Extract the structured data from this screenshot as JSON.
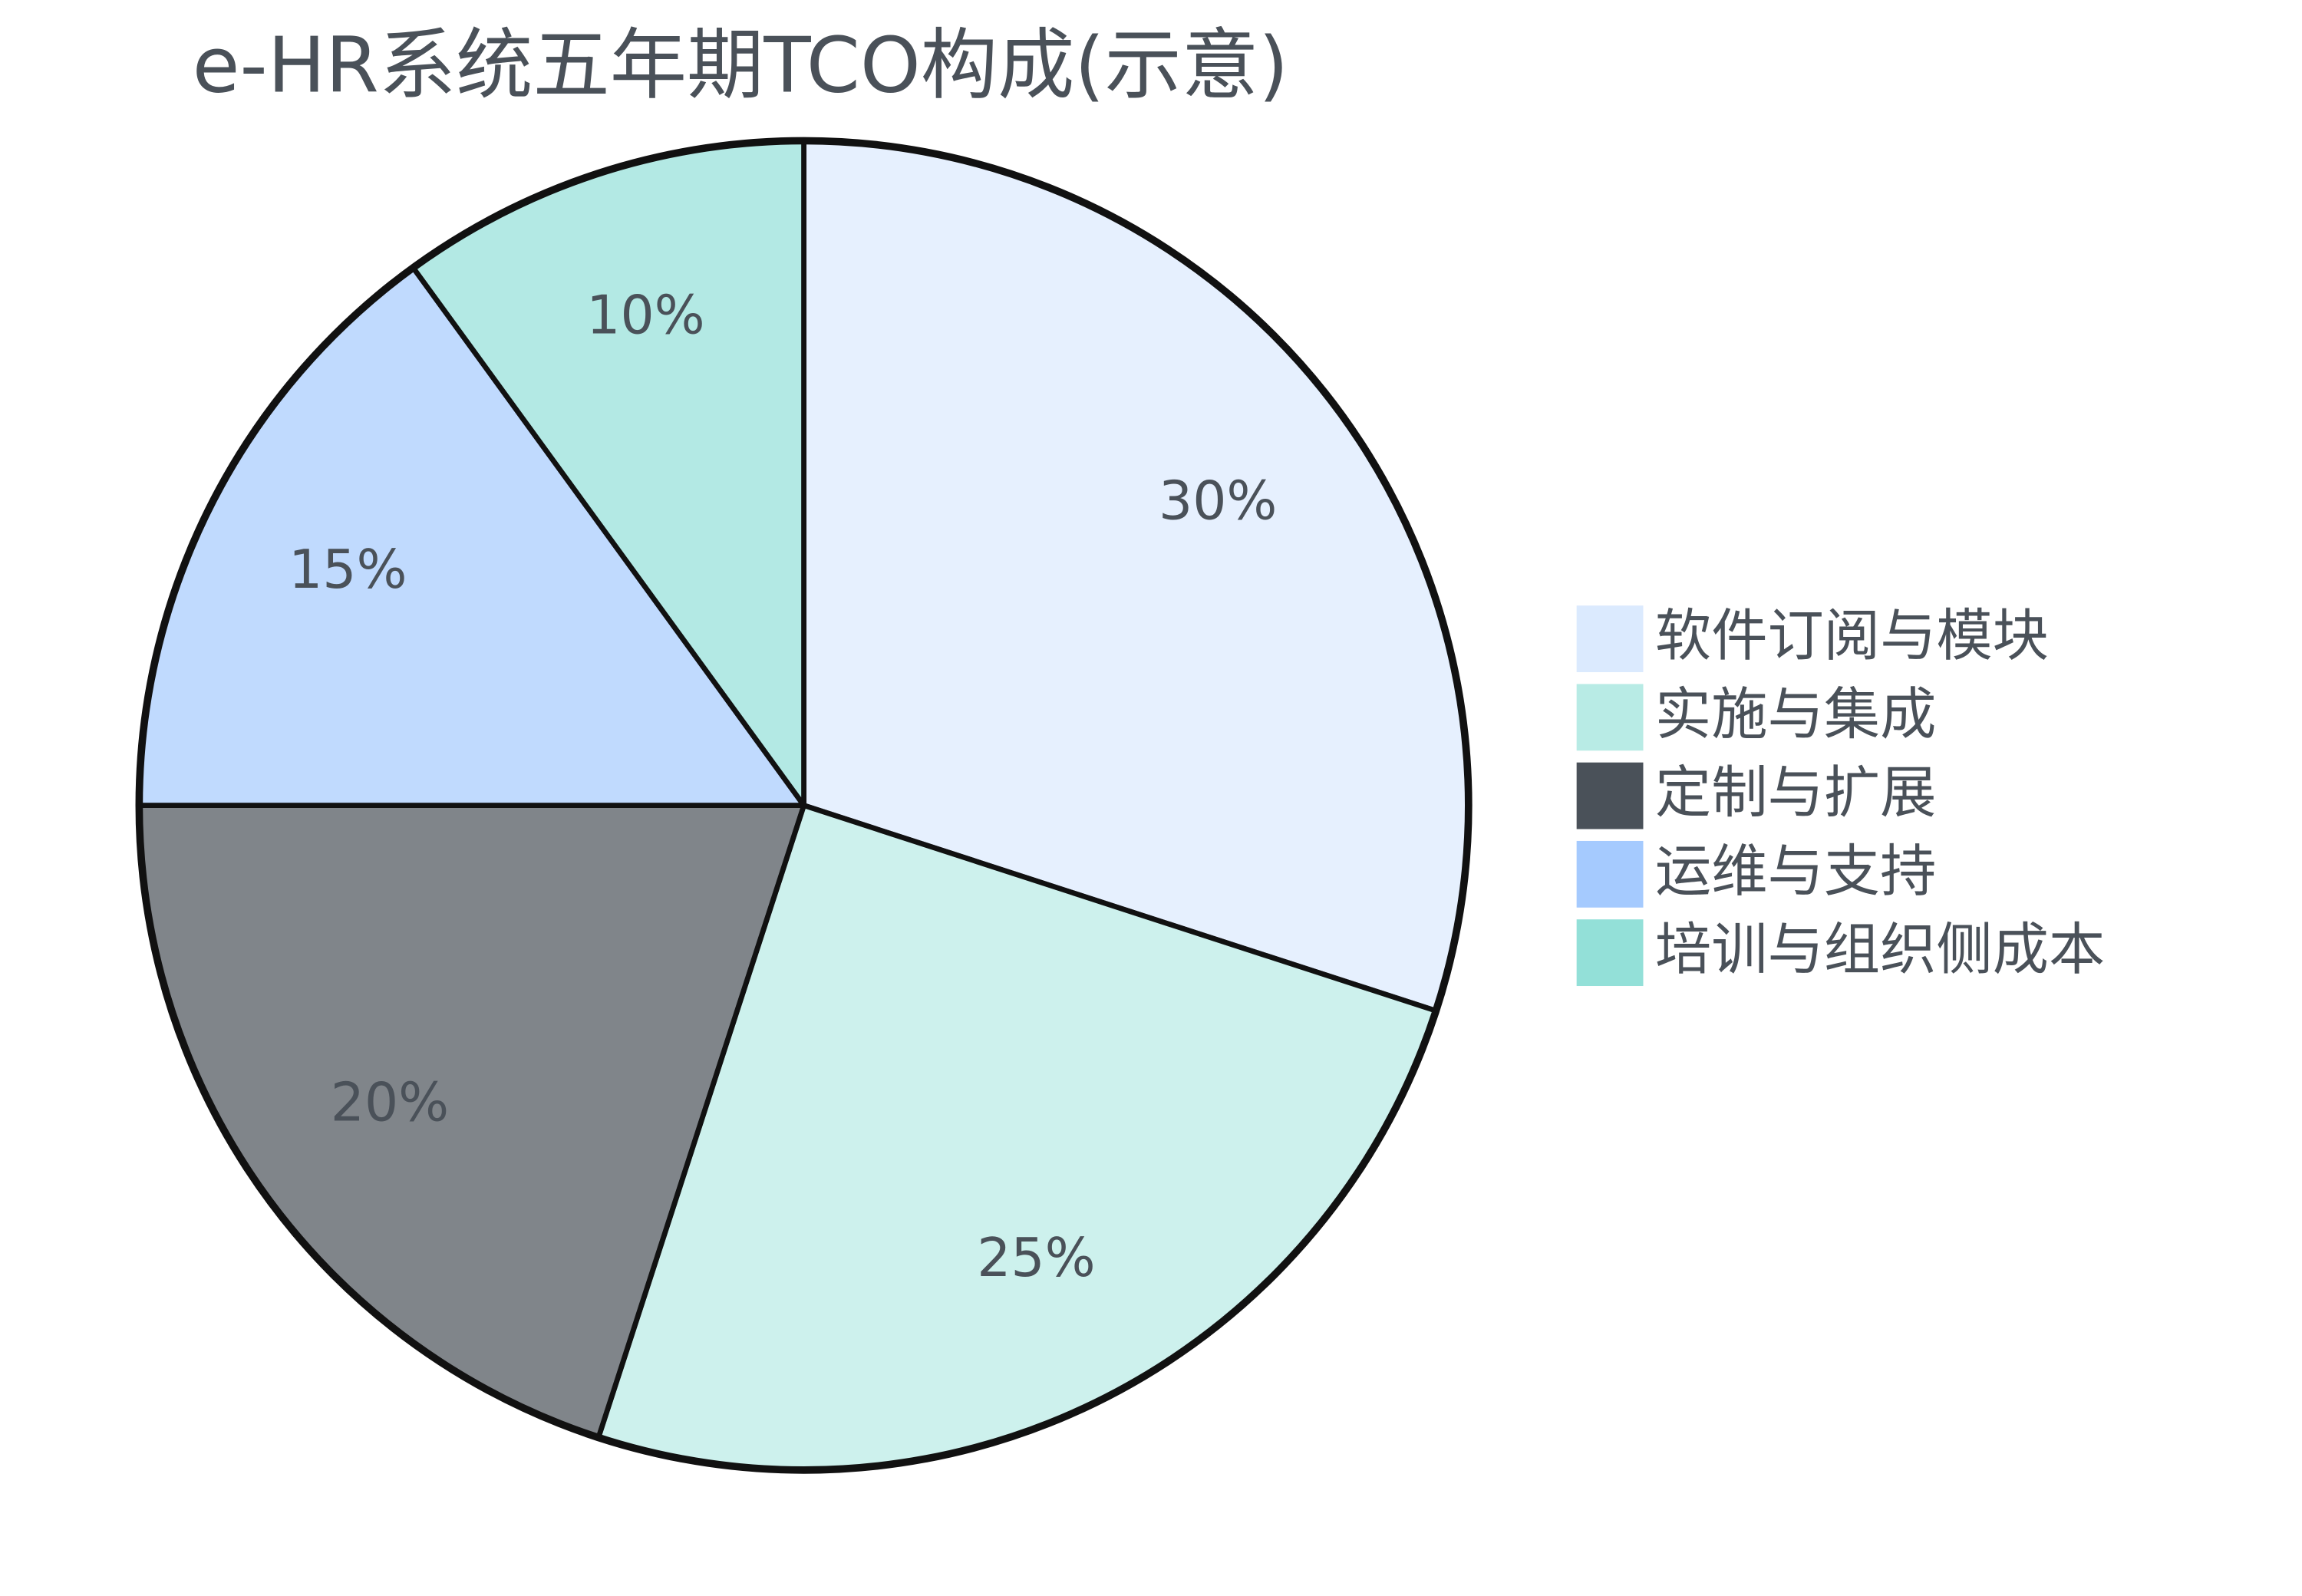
{
  "chart_data": {
    "type": "pie",
    "title": "e-HR系统五年期TCO构成(示意)",
    "categories": [
      "软件订阅与模块",
      "实施与集成",
      "定制与扩展",
      "运维与支持",
      "培训与组织侧成本"
    ],
    "values": [
      30,
      25,
      20,
      15,
      10
    ],
    "value_labels": [
      "30%",
      "25%",
      "20%",
      "15%",
      "10%"
    ],
    "colors": [
      "#dbeafe",
      "#b8ebe5",
      "#4a5159",
      "#a5cafe",
      "#93e0d8"
    ]
  }
}
